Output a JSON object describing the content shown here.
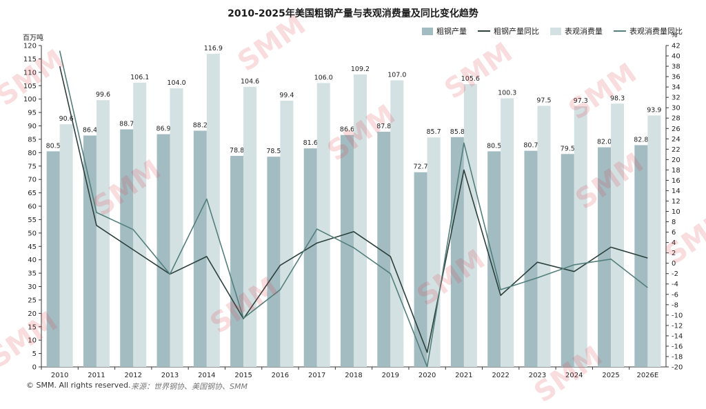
{
  "title": "2010-2025年美国粗钢产量与表观消费量及同比变化趋势",
  "left_unit": "百万吨",
  "right_unit": "%",
  "footer": {
    "copyright": "© SMM. All rights reserved.",
    "source": "来源：世界钢协、美国钢协、SMM"
  },
  "watermark": "SMM",
  "legend": [
    {
      "label": "粗钢产量",
      "kind": "bar",
      "color": "#a2bcc2"
    },
    {
      "label": "粗钢产量同比",
      "kind": "line",
      "color": "#2b3f3b"
    },
    {
      "label": "表观消费量",
      "kind": "bar",
      "color": "#d3e1e3"
    },
    {
      "label": "表观消费量同比",
      "kind": "line",
      "color": "#527f7a"
    }
  ],
  "chart_data": {
    "type": "bar",
    "categories": [
      "2010",
      "2011",
      "2012",
      "2013",
      "2014",
      "2015",
      "2016",
      "2017",
      "2018",
      "2019",
      "2020",
      "2021",
      "2022",
      "2023",
      "2024",
      "2025",
      "2026E"
    ],
    "series": [
      {
        "name": "粗钢产量",
        "type": "bar",
        "axis": "left",
        "color": "#a2bcc2",
        "values": [
          80.5,
          86.4,
          88.7,
          86.9,
          88.2,
          78.8,
          78.5,
          81.6,
          86.6,
          87.8,
          72.7,
          85.8,
          80.5,
          80.7,
          79.5,
          82.0,
          82.8
        ]
      },
      {
        "name": "表观消费量",
        "type": "bar",
        "axis": "left",
        "color": "#d3e1e3",
        "values": [
          90.6,
          99.6,
          106.1,
          104.0,
          116.9,
          104.6,
          99.4,
          106.0,
          109.2,
          107.0,
          85.7,
          105.6,
          100.3,
          97.5,
          97.3,
          98.3,
          93.9
        ]
      },
      {
        "name": "粗钢产量同比",
        "type": "line",
        "axis": "right",
        "color": "#2b3f3b",
        "values": [
          38.0,
          7.3,
          2.6,
          -2.1,
          1.3,
          -10.7,
          -0.4,
          3.9,
          6.1,
          1.3,
          -17.2,
          18.0,
          -6.2,
          0.2,
          -1.6,
          3.1,
          1.0
        ]
      },
      {
        "name": "表观消费量同比",
        "type": "line",
        "axis": "right",
        "color": "#527f7a",
        "values": [
          41.0,
          9.8,
          6.5,
          -2.1,
          12.4,
          -10.6,
          -5.1,
          6.6,
          3.0,
          -2.0,
          -20.0,
          23.2,
          -5.1,
          -2.8,
          -0.3,
          0.8,
          -4.7
        ]
      }
    ],
    "ylim_left": [
      0,
      120
    ],
    "ylim_right": [
      -20,
      42
    ],
    "left_ticks_step": 5,
    "right_ticks_step": 2,
    "grid": false,
    "legend_position": "top-right"
  }
}
